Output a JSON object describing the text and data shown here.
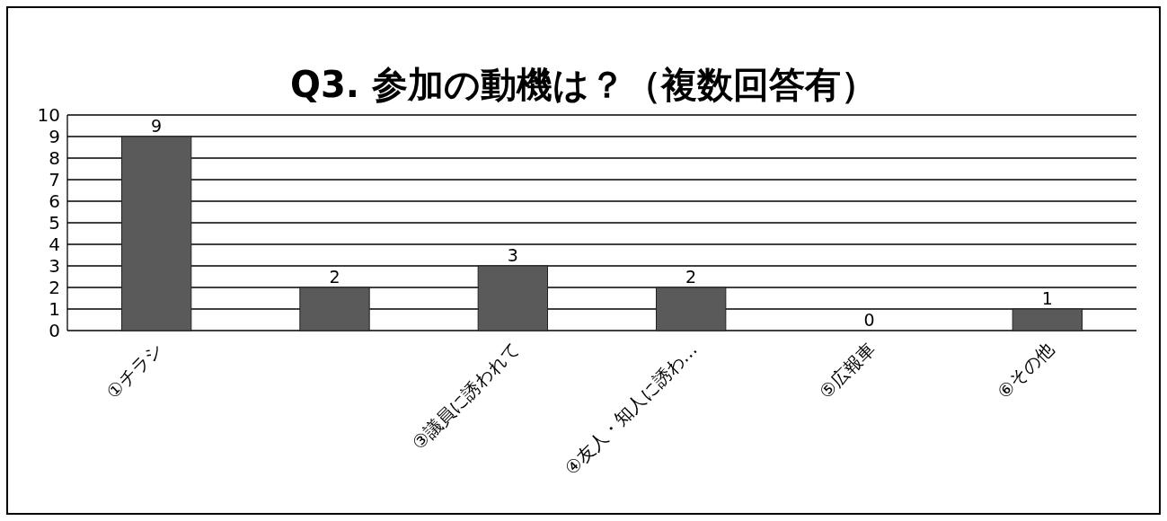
{
  "chart_data": {
    "type": "bar",
    "title": "Q3. 参加の動機は？（複数回答有）",
    "categories": [
      "①チラシ",
      null,
      "③議員に誘われて",
      "④友人・知人に誘わ…",
      "⑤広報車",
      "⑥その他"
    ],
    "values": [
      9,
      2,
      3,
      2,
      0,
      1
    ],
    "color": "#5a5a5a",
    "ylim": [
      0,
      10
    ],
    "yticks": [
      0,
      1,
      2,
      3,
      4,
      5,
      6,
      7,
      8,
      9,
      10
    ],
    "grid": "y",
    "data_labels": true
  }
}
